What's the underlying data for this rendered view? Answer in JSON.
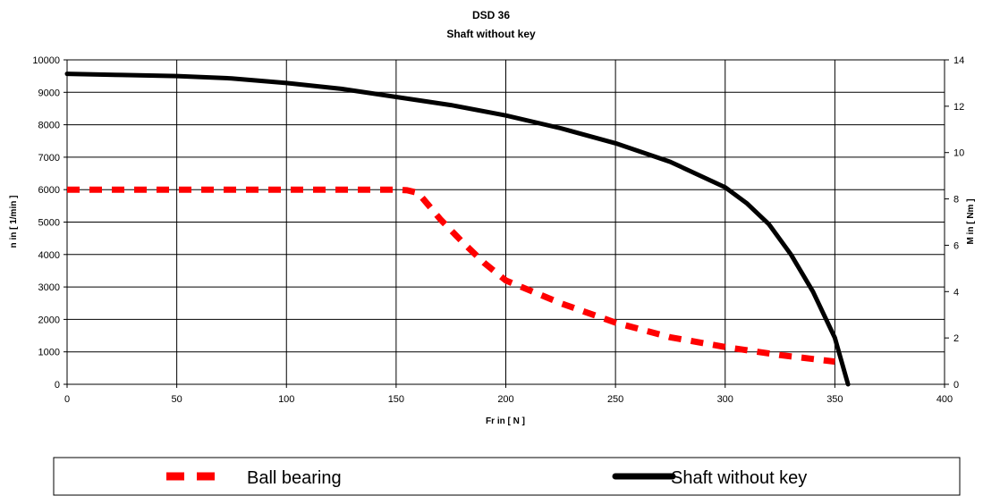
{
  "chart_data": {
    "type": "line",
    "title": "DSD 36",
    "subtitle": "Shaft without key",
    "xlabel": "Fr in [ N ]",
    "ylabel": "n in [ 1/min ]",
    "y2label": "M in [ Nm ]",
    "xlim": [
      0,
      400
    ],
    "ylim": [
      0,
      10000
    ],
    "y2lim": [
      0,
      14
    ],
    "x_ticks": [
      "0",
      "50",
      "100",
      "150",
      "200",
      "250",
      "300",
      "350",
      "400"
    ],
    "y_ticks": [
      "0",
      "1000",
      "2000",
      "3000",
      "4000",
      "5000",
      "6000",
      "7000",
      "8000",
      "9000",
      "10000"
    ],
    "y2_ticks": [
      "0",
      "2",
      "4",
      "6",
      "8",
      "10",
      "12",
      "14"
    ],
    "grid": true,
    "legend_position": "bottom",
    "series": [
      {
        "name": "Ball bearing",
        "axis": "left",
        "style": "dashed",
        "color": "#ff0000",
        "x": [
          0,
          50,
          100,
          150,
          155,
          160,
          165,
          170,
          180,
          190,
          200,
          225,
          250,
          275,
          300,
          325,
          350
        ],
        "y": [
          6000,
          6000,
          6000,
          6000,
          5980,
          5900,
          5500,
          5100,
          4400,
          3750,
          3200,
          2500,
          1900,
          1450,
          1150,
          900,
          700
        ]
      },
      {
        "name": "Shaft without key",
        "axis": "right",
        "style": "solid",
        "color": "#000000",
        "x": [
          0,
          25,
          50,
          75,
          100,
          125,
          150,
          175,
          200,
          225,
          250,
          275,
          300,
          310,
          320,
          330,
          340,
          350,
          356
        ],
        "y": [
          13.4,
          13.35,
          13.3,
          13.2,
          13.0,
          12.75,
          12.4,
          12.05,
          11.6,
          11.05,
          10.4,
          9.6,
          8.5,
          7.8,
          6.9,
          5.6,
          4.0,
          2.0,
          0
        ]
      }
    ]
  }
}
